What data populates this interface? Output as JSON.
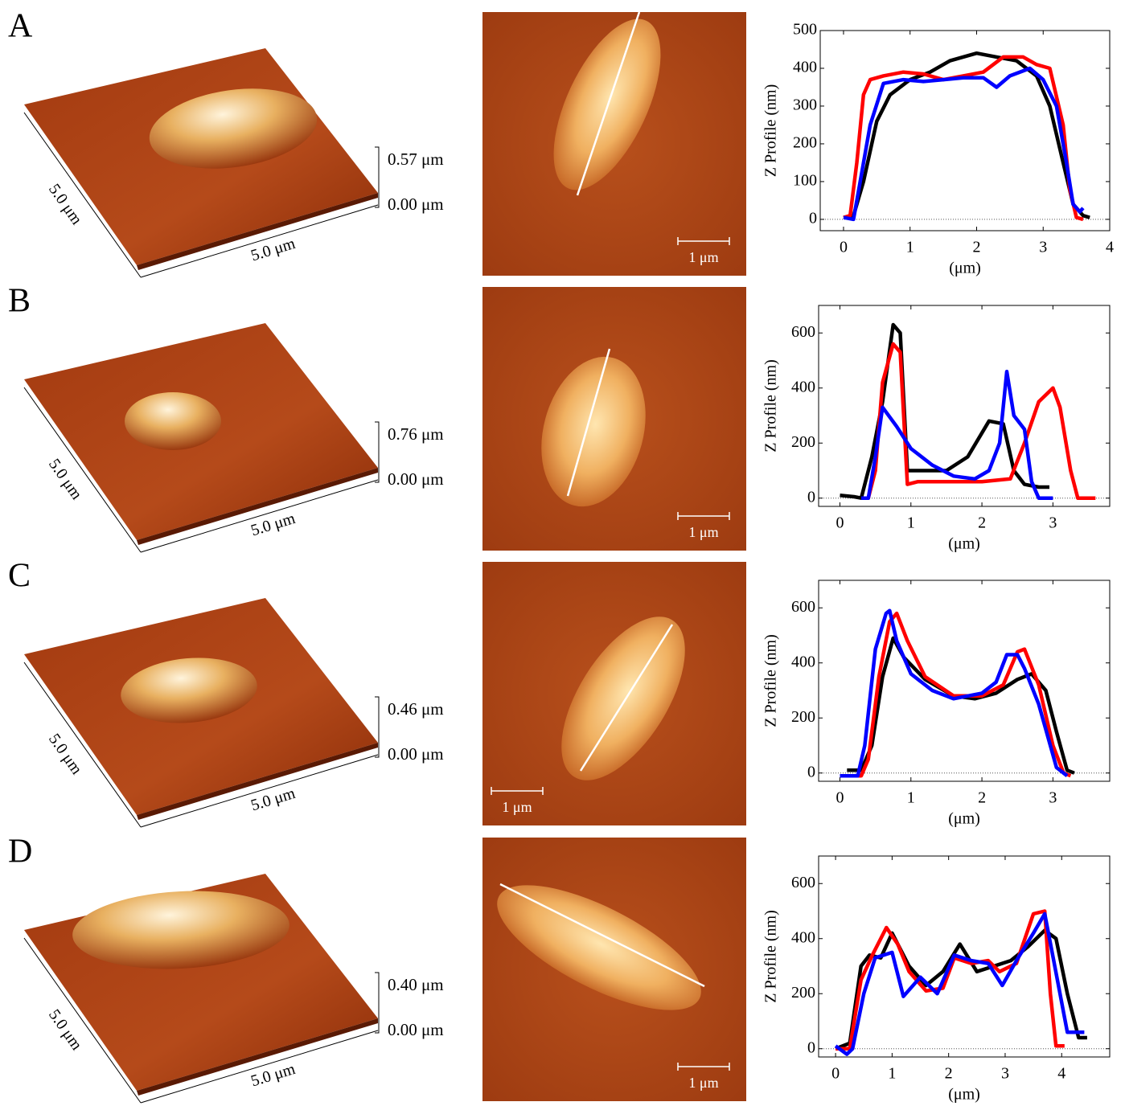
{
  "panels": [
    {
      "label": "A",
      "x_size": "5.0 μm",
      "y_size": "5.0 μm",
      "z_max": "0.57 μm",
      "z_min": "0.00 μm",
      "scale_bar": "1 μm"
    },
    {
      "label": "B",
      "x_size": "5.0 μm",
      "y_size": "5.0 μm",
      "z_max": "0.76 μm",
      "z_min": "0.00 μm",
      "scale_bar": "1 μm"
    },
    {
      "label": "C",
      "x_size": "5.0 μm",
      "y_size": "5.0 μm",
      "z_max": "0.46 μm",
      "z_min": "0.00 μm",
      "scale_bar": "1 μm"
    },
    {
      "label": "D",
      "x_size": "5.0 μm",
      "y_size": "5.0 μm",
      "z_max": "0.40 μm",
      "z_min": "0.00 μm",
      "scale_bar": "1 μm"
    }
  ],
  "chart_data": [
    {
      "type": "line",
      "x_label": "(μm)",
      "y_label": "Z Profile (nm)",
      "xlim": [
        -0.35,
        4
      ],
      "ylim": [
        -30,
        500
      ],
      "xticks": [
        0,
        1,
        2,
        3,
        4
      ],
      "yticks": [
        0,
        100,
        200,
        300,
        400,
        500
      ],
      "series": [
        {
          "color": "#000000",
          "x": [
            0,
            0.15,
            0.3,
            0.5,
            0.7,
            1,
            1.3,
            1.6,
            2,
            2.3,
            2.6,
            2.9,
            3.1,
            3.3,
            3.45,
            3.6,
            3.7
          ],
          "values": [
            5,
            10,
            100,
            260,
            330,
            370,
            390,
            420,
            440,
            430,
            420,
            380,
            300,
            150,
            40,
            10,
            5
          ]
        },
        {
          "color": "#ff0000",
          "x": [
            0,
            0.1,
            0.2,
            0.3,
            0.4,
            0.6,
            0.9,
            1.2,
            1.5,
            1.8,
            2.1,
            2.4,
            2.7,
            2.9,
            3.1,
            3.3,
            3.4,
            3.5,
            3.6
          ],
          "values": [
            5,
            10,
            150,
            330,
            370,
            380,
            390,
            385,
            370,
            380,
            390,
            430,
            430,
            410,
            400,
            250,
            80,
            5,
            0
          ]
        },
        {
          "color": "#0000ff",
          "x": [
            0,
            0.15,
            0.25,
            0.4,
            0.6,
            0.9,
            1.2,
            1.5,
            1.8,
            2.1,
            2.3,
            2.5,
            2.8,
            3,
            3.2,
            3.35,
            3.45,
            3.55,
            3.6
          ],
          "values": [
            5,
            0,
            100,
            250,
            360,
            370,
            365,
            370,
            375,
            375,
            350,
            380,
            400,
            370,
            300,
            150,
            40,
            20,
            30
          ]
        }
      ]
    },
    {
      "type": "line",
      "x_label": "(μm)",
      "y_label": "Z Profile (nm)",
      "xlim": [
        -0.3,
        3.8
      ],
      "ylim": [
        -30,
        700
      ],
      "xticks": [
        0,
        1,
        2,
        3
      ],
      "yticks": [
        0,
        200,
        400,
        600
      ],
      "series": [
        {
          "color": "#000000",
          "x": [
            0,
            0.2,
            0.3,
            0.45,
            0.6,
            0.75,
            0.85,
            0.95,
            1.2,
            1.5,
            1.8,
            2.1,
            2.3,
            2.45,
            2.6,
            2.8,
            2.95
          ],
          "values": [
            10,
            5,
            0,
            150,
            350,
            630,
            600,
            100,
            100,
            100,
            150,
            280,
            270,
            100,
            50,
            40,
            40
          ]
        },
        {
          "color": "#ff0000",
          "x": [
            0.3,
            0.4,
            0.5,
            0.6,
            0.75,
            0.85,
            0.95,
            1.1,
            1.5,
            2,
            2.4,
            2.6,
            2.8,
            3,
            3.1,
            3.25,
            3.35,
            3.6
          ],
          "values": [
            0,
            0,
            100,
            420,
            560,
            530,
            50,
            60,
            60,
            60,
            70,
            200,
            350,
            400,
            330,
            100,
            0,
            0
          ]
        },
        {
          "color": "#0000ff",
          "x": [
            0.3,
            0.4,
            0.5,
            0.6,
            0.8,
            1,
            1.3,
            1.6,
            1.9,
            2.1,
            2.25,
            2.35,
            2.45,
            2.6,
            2.7,
            2.8,
            3
          ],
          "values": [
            0,
            0,
            150,
            330,
            260,
            180,
            120,
            80,
            70,
            100,
            200,
            460,
            300,
            250,
            60,
            0,
            0
          ]
        }
      ]
    },
    {
      "type": "line",
      "x_label": "(μm)",
      "y_label": "Z Profile (nm)",
      "xlim": [
        -0.3,
        3.8
      ],
      "ylim": [
        -30,
        700
      ],
      "xticks": [
        0,
        1,
        2,
        3
      ],
      "yticks": [
        0,
        200,
        400,
        600
      ],
      "series": [
        {
          "color": "#000000",
          "x": [
            0.1,
            0.3,
            0.45,
            0.6,
            0.75,
            0.9,
            1.2,
            1.6,
            1.9,
            2.2,
            2.5,
            2.7,
            2.9,
            3.05,
            3.2,
            3.3
          ],
          "values": [
            10,
            10,
            100,
            350,
            490,
            420,
            340,
            280,
            270,
            290,
            340,
            360,
            300,
            150,
            10,
            0
          ]
        },
        {
          "color": "#ff0000",
          "x": [
            0,
            0.3,
            0.4,
            0.55,
            0.7,
            0.8,
            0.95,
            1.2,
            1.6,
            2,
            2.3,
            2.5,
            2.6,
            2.8,
            3,
            3.15,
            3.25
          ],
          "values": [
            -10,
            -10,
            50,
            350,
            550,
            580,
            480,
            350,
            280,
            280,
            320,
            440,
            450,
            320,
            100,
            0,
            -10
          ]
        },
        {
          "color": "#0000ff",
          "x": [
            0,
            0.25,
            0.35,
            0.5,
            0.65,
            0.7,
            0.8,
            1,
            1.3,
            1.6,
            2,
            2.2,
            2.35,
            2.5,
            2.6,
            2.8,
            3.05,
            3.2
          ],
          "values": [
            -10,
            -10,
            100,
            450,
            580,
            590,
            480,
            360,
            300,
            270,
            290,
            330,
            430,
            430,
            380,
            250,
            20,
            -10
          ]
        }
      ]
    },
    {
      "type": "line",
      "x_label": "(μm)",
      "y_label": "Z Profile (nm)",
      "xlim": [
        -0.3,
        4.85
      ],
      "ylim": [
        -30,
        700
      ],
      "xticks": [
        0,
        1,
        2,
        3,
        4
      ],
      "yticks": [
        0,
        200,
        400,
        600
      ],
      "series": [
        {
          "color": "#000000",
          "x": [
            0,
            0.25,
            0.45,
            0.6,
            0.8,
            1,
            1.3,
            1.6,
            1.9,
            2.2,
            2.5,
            2.8,
            3.1,
            3.4,
            3.7,
            3.9,
            4.1,
            4.3,
            4.45
          ],
          "values": [
            0,
            20,
            300,
            340,
            330,
            420,
            300,
            230,
            280,
            380,
            280,
            300,
            320,
            370,
            430,
            400,
            200,
            40,
            40
          ]
        },
        {
          "color": "#ff0000",
          "x": [
            0,
            0.25,
            0.45,
            0.65,
            0.9,
            1.1,
            1.3,
            1.6,
            1.9,
            2.1,
            2.4,
            2.7,
            2.9,
            3.2,
            3.5,
            3.7,
            3.8,
            3.9,
            4.05
          ],
          "values": [
            0,
            0,
            250,
            340,
            440,
            380,
            280,
            210,
            220,
            330,
            310,
            320,
            280,
            310,
            490,
            500,
            200,
            10,
            10
          ]
        },
        {
          "color": "#0000ff",
          "x": [
            0,
            0.2,
            0.3,
            0.5,
            0.7,
            1,
            1.2,
            1.5,
            1.8,
            2.1,
            2.4,
            2.7,
            2.95,
            3.2,
            3.5,
            3.7,
            3.85,
            4.1,
            4.4
          ],
          "values": [
            10,
            -20,
            0,
            200,
            330,
            350,
            190,
            260,
            200,
            340,
            320,
            310,
            230,
            320,
            420,
            490,
            330,
            60,
            60
          ]
        }
      ]
    }
  ]
}
